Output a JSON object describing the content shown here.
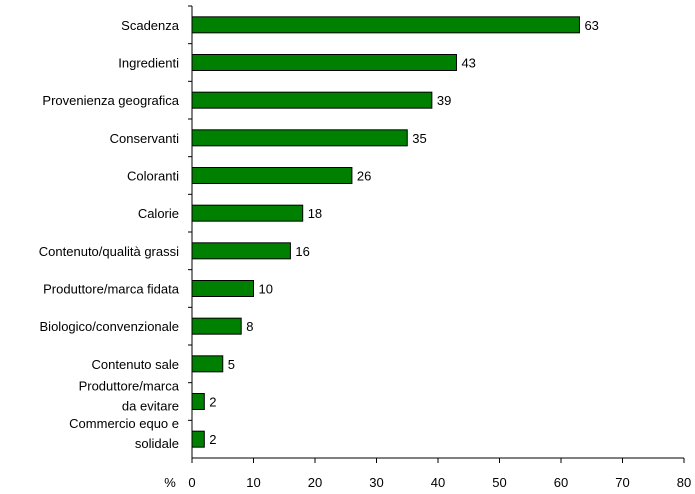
{
  "chart_data": {
    "type": "bar",
    "orientation": "horizontal",
    "categories": [
      "Scadenza",
      "Ingredienti",
      "Provenienza geografica",
      "Conservanti",
      "Coloranti",
      "Calorie",
      "Contenuto/qualità grassi",
      "Produttore/marca fidata",
      "Biologico/convenzionale",
      "Contenuto sale",
      "Produttore/marca da evitare",
      "Commercio equo e solidale"
    ],
    "category_lines": [
      [
        "Scadenza"
      ],
      [
        "Ingredienti"
      ],
      [
        "Provenienza geografica"
      ],
      [
        "Conservanti"
      ],
      [
        "Coloranti"
      ],
      [
        "Calorie"
      ],
      [
        "Contenuto/qualità grassi"
      ],
      [
        "Produttore/marca fidata"
      ],
      [
        "Biologico/convenzionale"
      ],
      [
        "Contenuto sale"
      ],
      [
        "Produttore/marca",
        "da evitare"
      ],
      [
        "Commercio equo e",
        "solidale"
      ]
    ],
    "values": [
      63,
      43,
      39,
      35,
      26,
      18,
      16,
      10,
      8,
      5,
      2,
      2
    ],
    "value_labels": [
      "63",
      "43",
      "39",
      "35",
      "26",
      "18",
      "16",
      "10",
      "8",
      "5",
      "2",
      "2"
    ],
    "xlim": [
      0,
      80
    ],
    "xticks": [
      0,
      10,
      20,
      30,
      40,
      50,
      60,
      70,
      80
    ],
    "xtick_labels": [
      "0",
      "10",
      "20",
      "30",
      "40",
      "50",
      "60",
      "70",
      "80"
    ],
    "axis_unit": "%",
    "bar_color": "#008000",
    "bar_outline": "#000000",
    "grid": false,
    "legend": "none"
  }
}
